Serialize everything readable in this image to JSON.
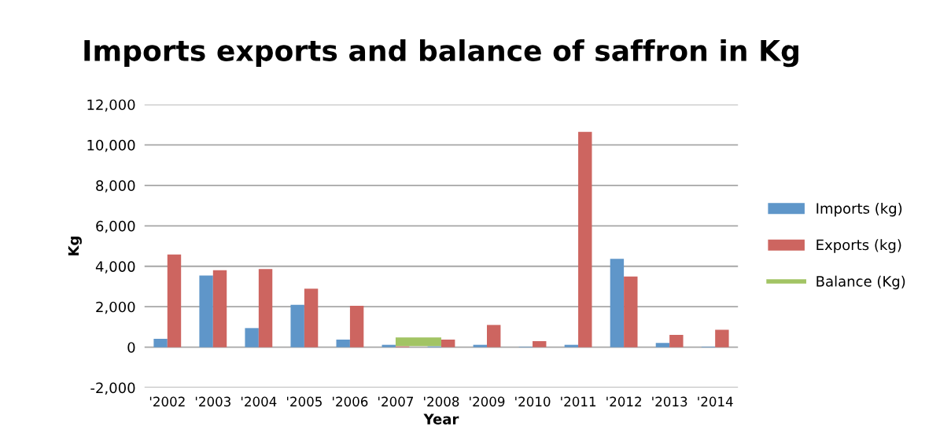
{
  "chart_data": {
    "type": "bar",
    "title": "Imports exports and balance of saffron in Kg",
    "xlabel": "Year",
    "ylabel": "Kg",
    "categories": [
      "'2002",
      "'2003",
      "'2004",
      "'2005",
      "'2006",
      "'2007",
      "'2008",
      "'2009",
      "'2010",
      "'2011",
      "'2012",
      "'2013",
      "'2014"
    ],
    "series": [
      {
        "name": "Imports (kg)",
        "color": "#5f96c9",
        "values": [
          416,
          3540,
          945,
          2100,
          376,
          117,
          40,
          117,
          26,
          117,
          4370,
          208,
          26
        ]
      },
      {
        "name": "Exports (kg)",
        "color": "#cd6560",
        "values": [
          4580,
          3810,
          3860,
          2890,
          2050,
          40,
          376,
          1100,
          300,
          10650,
          3500,
          610,
          860
        ]
      },
      {
        "name": "Balance (Kg)",
        "type": "line",
        "color": "#a2c464",
        "values": [
          null,
          null,
          null,
          null,
          null,
          270,
          270,
          null,
          null,
          null,
          null,
          null,
          null
        ]
      }
    ],
    "ylim": [
      -2000,
      12000
    ],
    "yticks": [
      {
        "value": -2000,
        "label": "-2,000"
      },
      0,
      {
        "value": 2000,
        "label": "2,000"
      },
      {
        "value": 4000,
        "label": "4,000"
      },
      {
        "value": 6000,
        "label": "6,000"
      },
      {
        "value": 8000,
        "label": "8,000"
      },
      {
        "value": 10000,
        "label": "10,000"
      },
      {
        "value": 12000,
        "label": "12,000"
      }
    ],
    "grid": "y",
    "legend": "right"
  }
}
